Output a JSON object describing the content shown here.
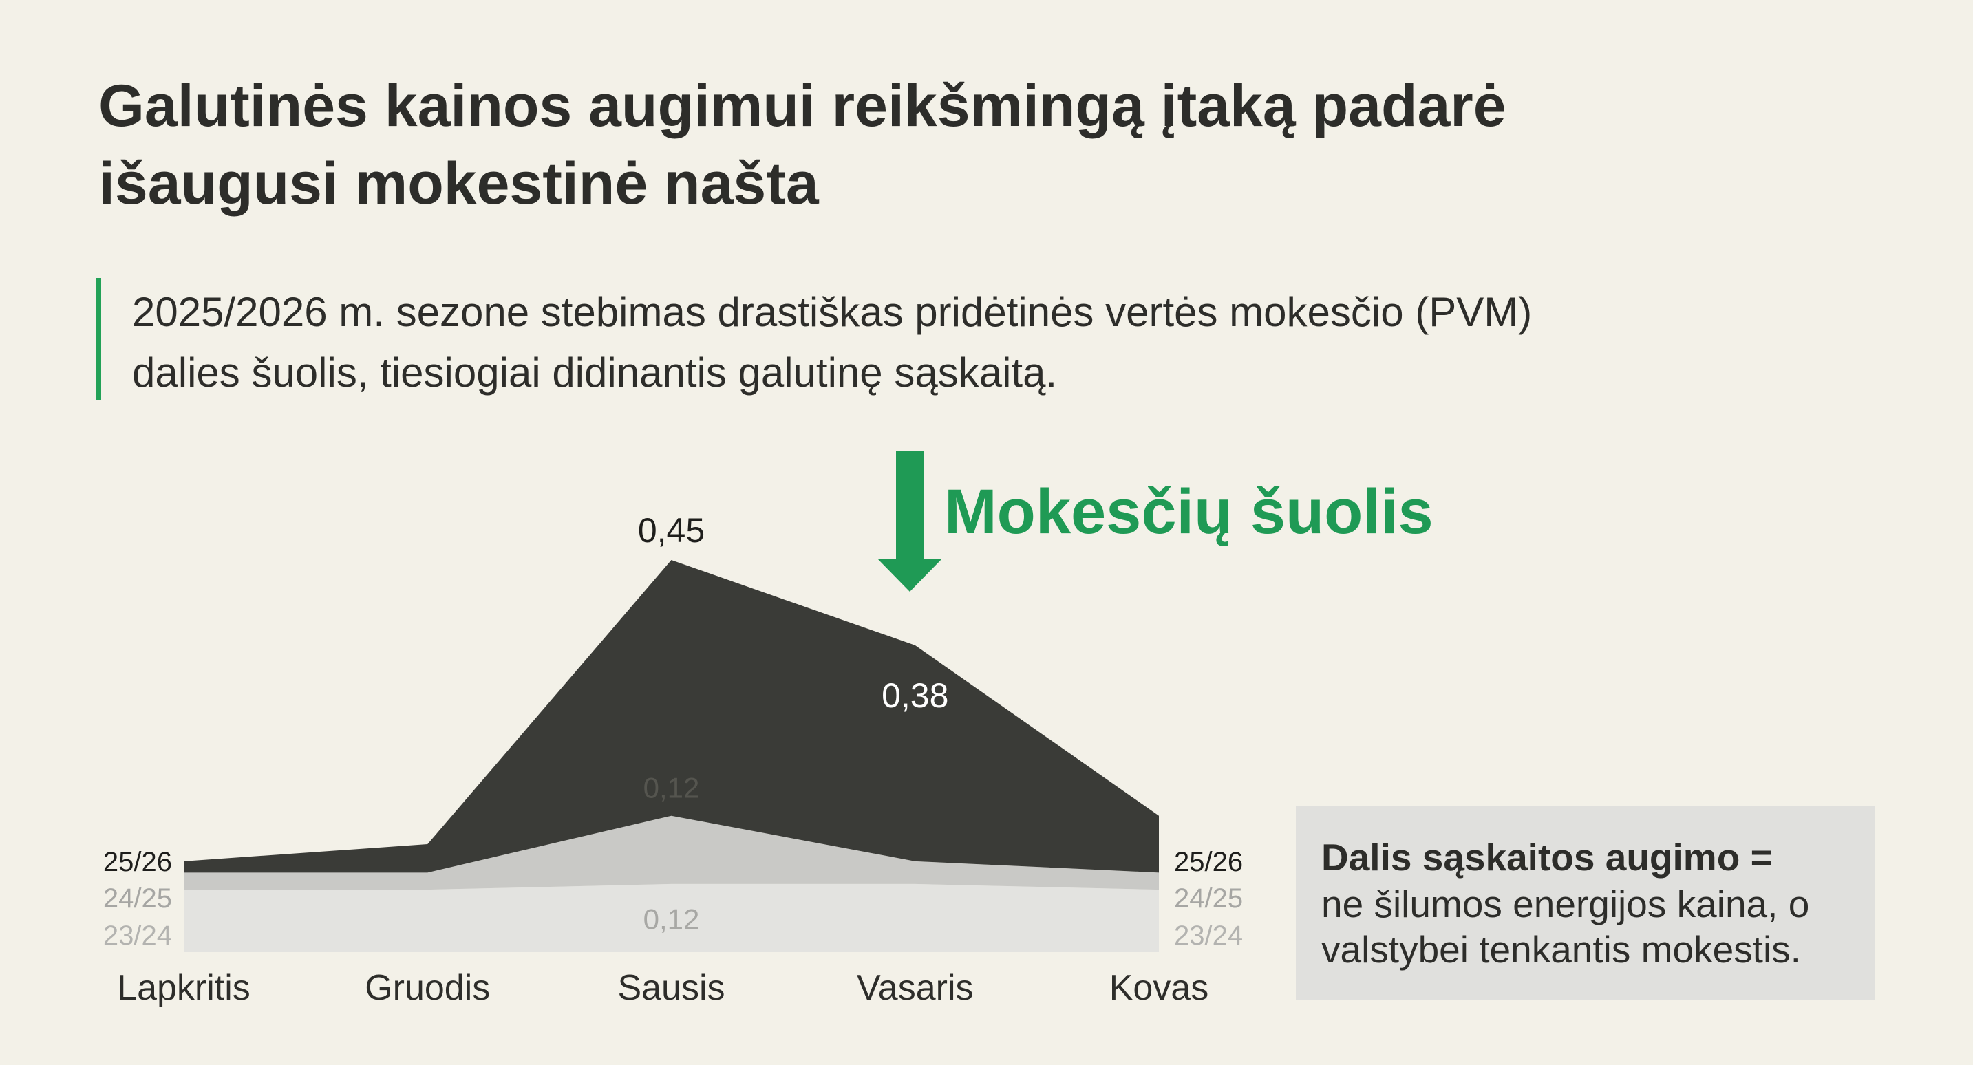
{
  "chart_data": {
    "type": "stacked_area",
    "title": [
      "Galutinės kainos augimui reikšmingą įtaką padarė",
      "išaugusi mokestinė našta"
    ],
    "subtitle": [
      "2025/2026 m. sezone stebimas drastiškas pridėtinės vertės mokesčio (PVM)",
      "dalies šuolis, tiesiogiai didinantis galutinę sąskaitą."
    ],
    "annotation": "Mokesčių šuolis",
    "callout": [
      "Dalis sąskaitos augimo =",
      "ne šilumos energijos kaina, o",
      "valstybei tenkantis mokestis."
    ],
    "categories": [
      "Lapkritis",
      "Gruodis",
      "Sausis",
      "Vasaris",
      "Kovas"
    ],
    "series": [
      {
        "name": "23/24",
        "color": "#e3e3e0",
        "values": [
          0.11,
          0.11,
          0.12,
          0.12,
          0.11
        ],
        "value_labels": [
          null,
          null,
          "0,12",
          null,
          null
        ]
      },
      {
        "name": "24/25",
        "color": "#c9c9c6",
        "values": [
          0.03,
          0.03,
          0.12,
          0.04,
          0.03
        ],
        "value_labels": [
          null,
          null,
          "0,12",
          null,
          null
        ]
      },
      {
        "name": "25/26",
        "color": "#3a3b37",
        "values": [
          0.02,
          0.05,
          0.45,
          0.38,
          0.1
        ],
        "value_labels": [
          null,
          null,
          "0,45",
          "0,38",
          null
        ]
      }
    ]
  }
}
